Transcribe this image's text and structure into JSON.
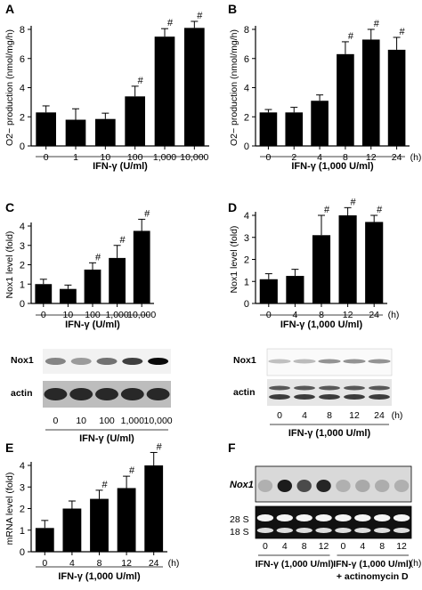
{
  "chart_data": [
    {
      "panel": "A",
      "type": "bar",
      "categories": [
        "0",
        "1",
        "10",
        "100",
        "1,000",
        "10,000"
      ],
      "values": [
        2.3,
        1.8,
        1.85,
        3.4,
        7.5,
        8.1
      ],
      "errors": [
        0.45,
        0.75,
        0.4,
        0.7,
        0.55,
        0.45
      ],
      "sig": [
        "",
        "",
        "",
        "#",
        "#",
        "#"
      ],
      "ylabel": "O2− production (nmol/mg/h)",
      "xlabel": "IFN-γ (U/ml)",
      "ylim": [
        0,
        8
      ],
      "yticks": [
        0,
        2,
        4,
        6,
        8
      ],
      "unit": ""
    },
    {
      "panel": "B",
      "type": "bar",
      "categories": [
        "0",
        "2",
        "4",
        "8",
        "12",
        "24"
      ],
      "values": [
        2.3,
        2.3,
        3.1,
        6.3,
        7.3,
        6.6
      ],
      "errors": [
        0.2,
        0.35,
        0.4,
        0.85,
        0.7,
        0.85
      ],
      "sig": [
        "",
        "",
        "",
        "#",
        "#",
        "#"
      ],
      "ylabel": "O2− production (nmol/mg/h)",
      "xlabel": "IFN-γ (1,000 U/ml)",
      "ylim": [
        0,
        8
      ],
      "yticks": [
        0,
        2,
        4,
        6,
        8
      ],
      "unit": "(h)"
    },
    {
      "panel": "C",
      "type": "bar",
      "categories": [
        "0",
        "10",
        "100",
        "1,000",
        "10,000"
      ],
      "values": [
        1.0,
        0.75,
        1.75,
        2.35,
        3.75
      ],
      "errors": [
        0.25,
        0.2,
        0.35,
        0.65,
        0.6
      ],
      "sig": [
        "",
        "",
        "#",
        "#",
        "#"
      ],
      "ylabel": "Nox1 level (fold)",
      "xlabel": "IFN-γ (U/ml)",
      "ylim": [
        0,
        4
      ],
      "yticks": [
        0,
        1,
        2,
        3,
        4
      ],
      "unit": ""
    },
    {
      "panel": "D",
      "type": "bar",
      "categories": [
        "0",
        "4",
        "8",
        "12",
        "24"
      ],
      "values": [
        1.1,
        1.25,
        3.1,
        4.0,
        3.7
      ],
      "errors": [
        0.25,
        0.3,
        0.9,
        0.35,
        0.3
      ],
      "sig": [
        "",
        "",
        "#",
        "#",
        "#"
      ],
      "ylabel": "Nox1 level (fold)",
      "xlabel": "IFN-γ (1,000 U/ml)",
      "ylim": [
        0,
        4
      ],
      "yticks": [
        0,
        1,
        2,
        3,
        4
      ],
      "unit": "(h)"
    },
    {
      "panel": "E",
      "type": "bar",
      "categories": [
        "0",
        "4",
        "8",
        "12",
        "24"
      ],
      "values": [
        1.1,
        2.0,
        2.45,
        2.95,
        4.0
      ],
      "errors": [
        0.35,
        0.35,
        0.4,
        0.55,
        0.6
      ],
      "sig": [
        "",
        "",
        "#",
        "#",
        "#"
      ],
      "ylabel": "mRNA level (fold)",
      "xlabel": "IFN-γ (1,000 U/ml)",
      "ylim": [
        0,
        4
      ],
      "yticks": [
        0,
        1,
        2,
        3,
        4
      ],
      "unit": "(h)"
    }
  ],
  "blots": {
    "C": {
      "row1": "Nox1",
      "row2": "actin",
      "lanes": [
        "0",
        "10",
        "100",
        "1,000",
        "10,000"
      ],
      "xlabel": "IFN-γ (U/ml)",
      "nox": [
        0.35,
        0.25,
        0.45,
        0.7,
        0.95
      ]
    },
    "D": {
      "row1": "Nox1",
      "row2": "actin",
      "lanes": [
        "0",
        "4",
        "8",
        "12",
        "24"
      ],
      "unit": "(h)",
      "xlabel": "IFN-γ (1,000 U/ml)",
      "nox": [
        0.1,
        0.12,
        0.3,
        0.3,
        0.3
      ]
    },
    "F": {
      "row1": "Nox1",
      "row2a": "28 S",
      "row2b": "18 S",
      "lanes": [
        "0",
        "4",
        "8",
        "12",
        "0",
        "4",
        "8",
        "12"
      ],
      "unit": "(h)",
      "group1": "IFN-γ (1,000 U/ml)",
      "group2": "IFN-γ (1,000 U/ml)",
      "group2b": "+ actinomycin D",
      "nox": [
        0.05,
        0.85,
        0.6,
        0.8,
        0.05,
        0.08,
        0.06,
        0.05
      ]
    }
  },
  "panel_letters": [
    "A",
    "B",
    "C",
    "D",
    "E",
    "F"
  ],
  "colors": {
    "bar": "#000000",
    "blot_bg": "#f2f2f2",
    "gel_bg": "#111111"
  }
}
